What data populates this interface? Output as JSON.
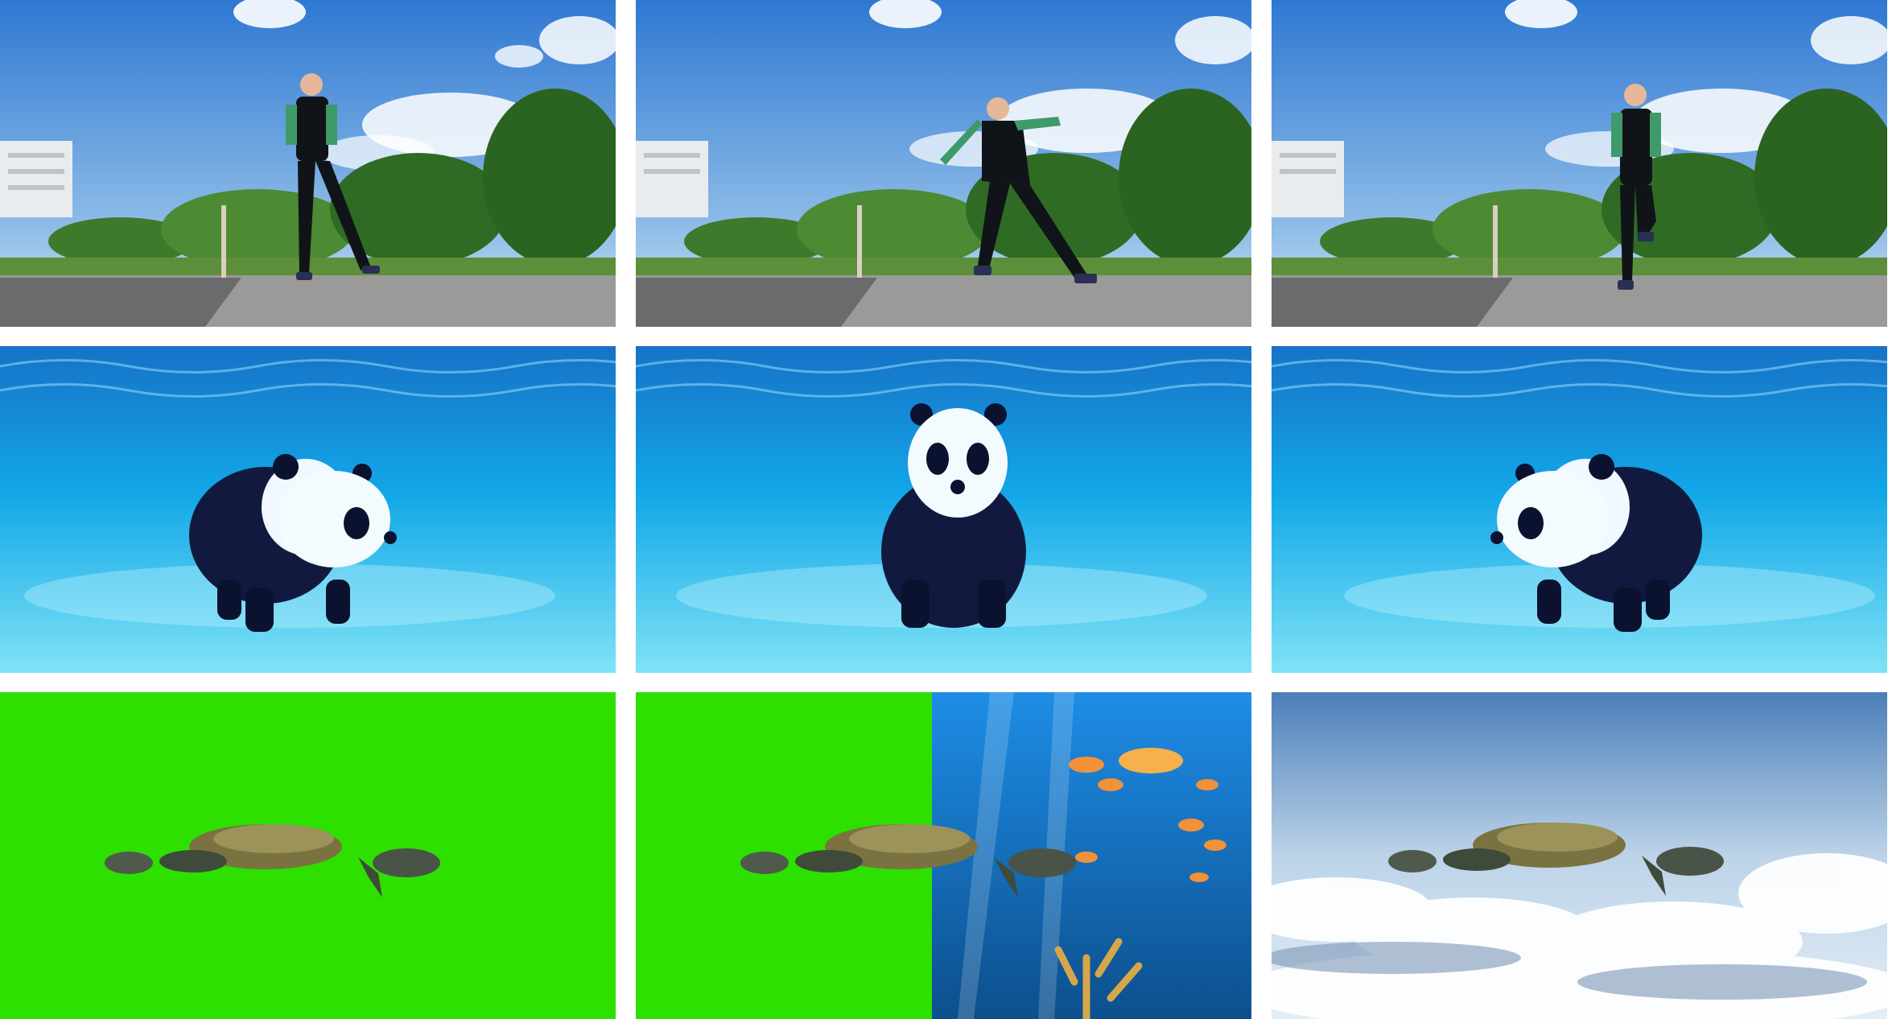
{
  "layout": "3x3 image grid",
  "rows": [
    {
      "name": "person-dancing-row",
      "tiles": [
        {
          "subject": "person-jumping",
          "scene": "park-plaza-sunny-day"
        },
        {
          "subject": "person-lunging",
          "scene": "park-plaza-sunny-day"
        },
        {
          "subject": "person-kicking",
          "scene": "park-plaza-sunny-day"
        }
      ]
    },
    {
      "name": "panda-underwater-row",
      "tiles": [
        {
          "subject": "panda-walking-right",
          "scene": "underwater-pool"
        },
        {
          "subject": "panda-facing-forward",
          "scene": "underwater-pool"
        },
        {
          "subject": "panda-walking-left",
          "scene": "underwater-pool"
        }
      ]
    },
    {
      "name": "turtle-compositing-row",
      "tiles": [
        {
          "subject": "sea-turtle",
          "scene": "green-screen"
        },
        {
          "subject": "sea-turtle",
          "scene": "green-screen-to-reef-split"
        },
        {
          "subject": "sea-turtle",
          "scene": "above-clouds-sky"
        }
      ]
    }
  ],
  "colors": {
    "sky_blue": "#3b83d6",
    "pool_blue": "#12a7e8",
    "green_screen": "#2de000",
    "cloud_sky": "#5b86b8"
  }
}
